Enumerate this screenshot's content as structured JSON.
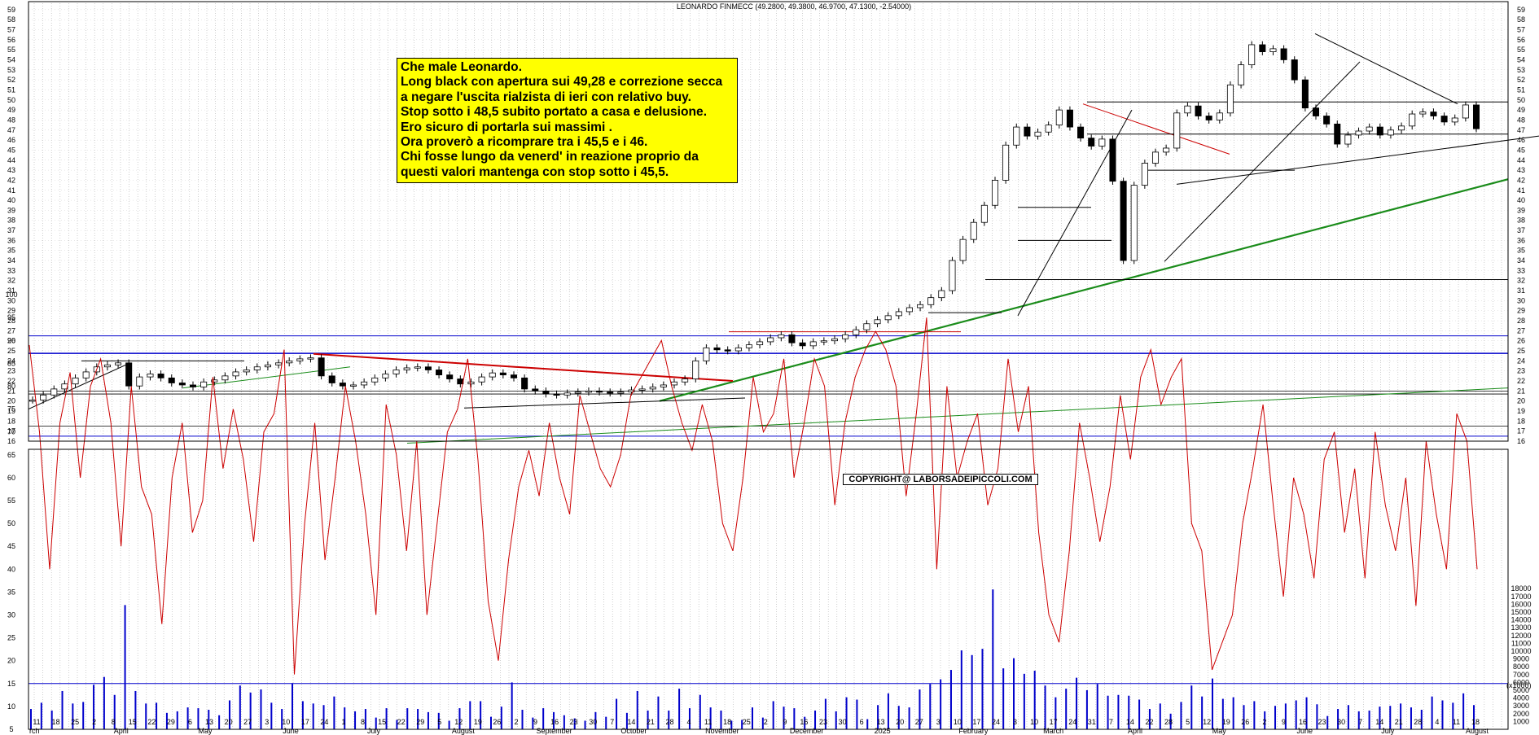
{
  "chart_data": [
    {
      "type": "line",
      "title": "LEONARDO FINMECC (49.2800, 49.3800, 46.9700, 47.1300, -2.54000)",
      "ylim": [
        16,
        59
      ],
      "y_ticks": [
        16,
        17,
        18,
        19,
        20,
        21,
        22,
        23,
        24,
        25,
        26,
        27,
        28,
        29,
        30,
        31,
        32,
        33,
        34,
        35,
        36,
        37,
        38,
        39,
        40,
        41,
        42,
        43,
        44,
        45,
        46,
        47,
        48,
        49,
        50,
        51,
        52,
        53,
        54,
        55,
        56,
        57,
        58,
        59
      ],
      "x_tick_labels": [
        "11",
        "18",
        "25",
        "2",
        "8",
        "15",
        "22",
        "29",
        "6",
        "13",
        "20",
        "27",
        "3",
        "10",
        "17",
        "24",
        "1",
        "8",
        "15",
        "22",
        "29",
        "5",
        "12",
        "19",
        "26",
        "2",
        "9",
        "16",
        "23",
        "30",
        "7",
        "14",
        "21",
        "28",
        "4",
        "11",
        "18",
        "25",
        "2",
        "9",
        "16",
        "23",
        "30",
        "6",
        "13",
        "20",
        "27",
        "3",
        "10",
        "17",
        "24",
        "3",
        "10",
        "17",
        "24",
        "31",
        "7",
        "14",
        "22",
        "28",
        "5",
        "12",
        "19",
        "26",
        "2",
        "9",
        "16",
        "23",
        "30",
        "7",
        "14",
        "21",
        "28",
        "4",
        "11",
        "18"
      ],
      "x_month_labels": [
        "rch",
        "April",
        "May",
        "June",
        "July",
        "August",
        "September",
        "October",
        "November",
        "December",
        "2025",
        "February",
        "March",
        "April",
        "May",
        "June",
        "July",
        "August"
      ],
      "grid": true,
      "series": [
        {
          "values": [
            20.1,
            20.6,
            21.2,
            21.7,
            22.3,
            22.9,
            23.4,
            23.6,
            23.8,
            21.5,
            22.4,
            22.7,
            22.3,
            21.8,
            21.6,
            21.4,
            21.9,
            22.1,
            22.5,
            22.9,
            23.1,
            23.4,
            23.6,
            23.8,
            24.0,
            24.2,
            24.3,
            22.5,
            21.8,
            21.5,
            21.6,
            21.9,
            22.3,
            22.7,
            23.1,
            23.3,
            23.4,
            23.1,
            22.6,
            22.2,
            21.7,
            21.9,
            22.4,
            22.8,
            22.6,
            22.3,
            21.2,
            21.0,
            20.7,
            20.6,
            20.8,
            20.9,
            21.0,
            20.9,
            20.8,
            20.9,
            21.1,
            21.2,
            21.4,
            21.6,
            21.9,
            22.2,
            24.0,
            25.3,
            25.1,
            25.0,
            25.3,
            25.6,
            25.9,
            26.3,
            26.6,
            25.8,
            25.5,
            25.9,
            26.0,
            26.2,
            26.6,
            27.1,
            27.7,
            28.1,
            28.5,
            28.9,
            29.3,
            29.6,
            30.3,
            31.0,
            34.0,
            36.1,
            37.8,
            39.5,
            42.0,
            45.5,
            47.3,
            46.4,
            46.8,
            47.5,
            49.0,
            47.3,
            46.2,
            45.4,
            46.1,
            41.9,
            34.0,
            41.5,
            43.7,
            44.8,
            45.2,
            48.7,
            49.4,
            48.4,
            48.0,
            48.7,
            51.5,
            53.5,
            55.5,
            54.8,
            55.1,
            54.0,
            52.0,
            49.2,
            48.4,
            47.6,
            45.6,
            46.5,
            46.9,
            47.3,
            46.5,
            47.0,
            47.4,
            48.6,
            48.8,
            48.4,
            47.8,
            48.2,
            49.5,
            47.13
          ]
        }
      ],
      "annotations": [
        "COPYRIGHT@ LABORSADEIPICCOLI.COM"
      ]
    },
    {
      "type": "line",
      "ylim": [
        5,
        100
      ],
      "left_y_ticks": [
        5,
        10,
        15,
        20,
        25,
        30,
        35,
        40,
        45,
        50,
        55,
        60,
        65,
        70,
        75,
        80,
        85,
        90,
        95,
        100
      ],
      "right_y_ticks": [
        1000,
        2000,
        3000,
        4000,
        5000,
        6000,
        7000,
        8000,
        9000,
        10000,
        11000,
        12000,
        13000,
        14000,
        15000,
        16000,
        17000,
        18000
      ],
      "right_axis_label": "(x1000)",
      "series": [
        {
          "values": [
            89,
            70,
            40,
            72,
            83,
            60,
            80,
            86,
            72,
            45,
            80,
            58,
            52,
            28,
            60,
            72,
            48,
            55,
            82,
            62,
            75,
            64,
            46,
            70,
            74,
            88,
            17,
            50,
            72,
            42,
            60,
            80,
            68,
            52,
            30,
            76,
            65,
            44,
            68,
            30,
            50,
            70,
            75,
            86,
            64,
            33,
            20,
            42,
            58,
            66,
            56,
            72,
            60,
            52,
            78,
            70,
            62,
            58,
            65,
            78,
            82,
            86,
            90,
            80,
            72,
            66,
            76,
            68,
            50,
            44,
            60,
            82,
            70,
            74,
            86,
            60,
            72,
            86,
            80,
            54,
            72,
            82,
            88,
            92,
            88,
            80,
            56,
            74,
            95,
            40,
            80,
            60,
            68,
            74,
            54,
            62,
            86,
            70,
            80,
            48,
            30,
            24,
            44,
            72,
            60,
            46,
            58,
            78,
            64,
            82,
            88,
            76,
            82,
            86,
            50,
            44,
            18,
            24,
            30,
            50,
            62,
            76,
            54,
            34,
            60,
            52,
            38,
            64,
            70,
            48,
            62,
            38,
            70,
            54,
            44,
            60,
            32,
            68,
            52,
            40,
            74,
            68,
            40
          ]
        },
        {
          "values": [
            2.6,
            3.4,
            2.4,
            4.9,
            3.3,
            3.5,
            5.7,
            6.7,
            4.4,
            15.9,
            4.9,
            3.3,
            3.4,
            2.1,
            2.3,
            2.8,
            2.7,
            2.5,
            1.8,
            3.7,
            5.6,
            4.7,
            5.1,
            3.4,
            2.6,
            5.9,
            3.6,
            3.3,
            3.1,
            4.2,
            2.8,
            2.3,
            2.6,
            1.5,
            2.7,
            1.2,
            2.7,
            2.6,
            2.2,
            2.1,
            1.1,
            2.7,
            3.6,
            3.6,
            1.6,
            2.9,
            6.0,
            2.5,
            1.5,
            2.7,
            2.2,
            1.8,
            1.4,
            1.1,
            2.2,
            1.6,
            3.9,
            2.1,
            4.9,
            2.4,
            4.2,
            2.4,
            5.2,
            2.7,
            4.4,
            2.8,
            2.4,
            1.1,
            1.2,
            2.8,
            1.5,
            3.6,
            2.9,
            2.7,
            1.6,
            2.4,
            3.9,
            2.3,
            4.1,
            3.8,
            1.3,
            3.1,
            4.6,
            3.0,
            2.8,
            5.1,
            5.8,
            6.4,
            7.6,
            10.1,
            9.5,
            10.3,
            17.9,
            7.8,
            9.1,
            7.1,
            7.5,
            5.6,
            4.1,
            5.2,
            6.6,
            5.0,
            5.8,
            4.3,
            4.4,
            4.3,
            3.8,
            2.6,
            3.3,
            2.0,
            3.5,
            5.6,
            4.2,
            6.5,
            3.9,
            4.1,
            3.1,
            3.6,
            2.3,
            3.0,
            3.3,
            3.7,
            4.1,
            3.2,
            1.7,
            2.6,
            3.1,
            2.3,
            2.4,
            2.9,
            3.0,
            3.3,
            2.8,
            2.5,
            4.2,
            3.7,
            3.4,
            4.6,
            3.1
          ]
        }
      ]
    }
  ],
  "commentary": [
    "Che male Leonardo.",
    "Long black con apertura sui 49,28 e correzione secca",
    "a negare l'uscita rialzista di ieri con relativo buy.",
    "Stop sotto i 48,5 subito portato a casa e delusione.",
    "Ero sicuro di portarla sui massimi .",
    "Ora proverò a ricomprare tra i 45,5 e i 46.",
    "Chi fosse lungo da venerd' in reazione proprio da",
    "questi valori mantenga con stop sotto i 45,5."
  ],
  "colors": {
    "candle": "#000000",
    "rsi_line": "#cc0000",
    "volume_bar": "#0000cc",
    "horizontal_blue": "#0000cc",
    "trend_green": "#1a8c1a",
    "trend_red": "#cc0000",
    "gridline": "#b0b0b0",
    "note_background": "#ffff00"
  }
}
